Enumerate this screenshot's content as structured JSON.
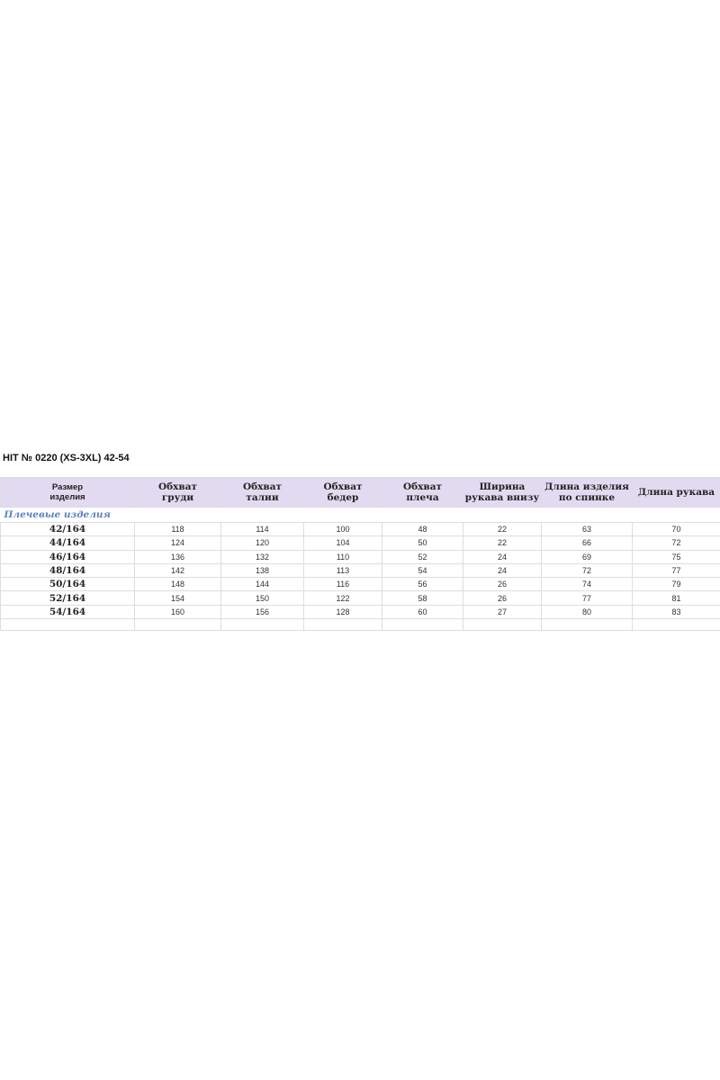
{
  "title": "HIT № 0220 (XS-3XL) 42-54",
  "columns": [
    "Размер\nизделия",
    "Обхват\nгруди",
    "Обхват\nталии",
    "Обхват\nбедер",
    "Обхват\nплеча",
    "Ширина\nрукава внизу",
    "Длина изделия\nпо спинке",
    "Длина рукава"
  ],
  "section_label": "Плечевые изделия",
  "rows": [
    [
      "42/164",
      "118",
      "114",
      "100",
      "48",
      "22",
      "63",
      "70"
    ],
    [
      "44/164",
      "124",
      "120",
      "104",
      "50",
      "22",
      "66",
      "72"
    ],
    [
      "46/164",
      "136",
      "132",
      "110",
      "52",
      "24",
      "69",
      "75"
    ],
    [
      "48/164",
      "142",
      "138",
      "113",
      "54",
      "24",
      "72",
      "77"
    ],
    [
      "50/164",
      "148",
      "144",
      "116",
      "56",
      "26",
      "74",
      "79"
    ],
    [
      "52/164",
      "154",
      "150",
      "122",
      "58",
      "26",
      "77",
      "81"
    ],
    [
      "54/164",
      "160",
      "156",
      "128",
      "60",
      "27",
      "80",
      "83"
    ]
  ],
  "colors": {
    "header_bg": "#e2daf0",
    "section_text": "#5b7fc3"
  }
}
